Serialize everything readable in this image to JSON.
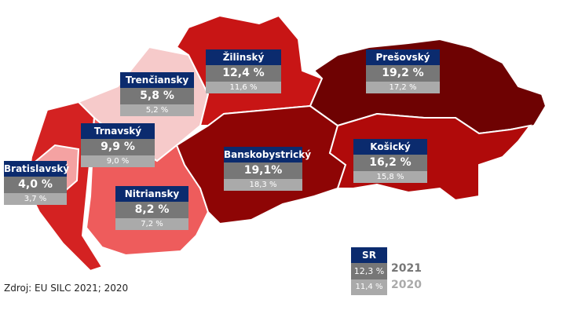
{
  "regions": [
    {
      "name": "Bratislavský",
      "value_2021": "4,0 %",
      "value_2020": "3,7 %",
      "color": "#f6caca"
    },
    {
      "name": "Trnavský",
      "value_2021": "9,9 %",
      "value_2020": "9,0 %",
      "color": "#d42222"
    },
    {
      "name": "Trenčiansky",
      "value_2021": "5,8 %",
      "value_2020": "5,2 %",
      "color": "#f4a2a2"
    },
    {
      "name": "Nitriansky",
      "value_2021": "8,2 %",
      "value_2020": "7,2 %",
      "color": "#ee5c5c"
    },
    {
      "name": "Žilinský",
      "value_2021": "12,4 %",
      "value_2020": "11,6 %",
      "color": "#c81515"
    },
    {
      "name": "Banskobystrický",
      "value_2021": "19,1%",
      "value_2020": "18,3 %",
      "color": "#8e0505"
    },
    {
      "name": "Prešovský",
      "value_2021": "19,2 %",
      "value_2020": "17,2 %",
      "color": "#6e0202"
    },
    {
      "name": "Košický",
      "value_2021": "16,2 %",
      "value_2020": "15,8 %",
      "color": "#b00a0a"
    }
  ],
  "total": {
    "name": "SR",
    "value_2021": "12,3 %",
    "value_2020": "11,4 %",
    "year_2021": "2021",
    "year_2020": "2020"
  },
  "source": "Zdroj: EU SILC 2021; 2020"
}
